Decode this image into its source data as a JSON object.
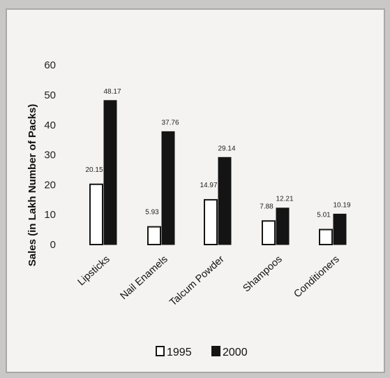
{
  "chart_data": {
    "type": "bar",
    "ylabel": "Sales (in Lakh Number of Packs)",
    "xlabel": "",
    "ylim": [
      0,
      60
    ],
    "yticks": [
      "0",
      "10",
      "20",
      "30",
      "40",
      "50",
      "60"
    ],
    "categories": [
      "Lipsticks",
      "Nail Enamels",
      "Talcum Powder",
      "Shampoos",
      "Conditioners"
    ],
    "series": [
      {
        "name": "1995",
        "values": [
          20.15,
          5.93,
          14.97,
          7.88,
          5.01
        ],
        "labels": [
          "20.15",
          "5.93",
          "14.97",
          "7.88",
          "5.01"
        ],
        "color": "#ffffff"
      },
      {
        "name": "2000",
        "values": [
          48.17,
          37.76,
          29.14,
          12.21,
          10.19
        ],
        "labels": [
          "48.17",
          "37.76",
          "29.14",
          "12.21",
          "10.19"
        ],
        "color": "#111111"
      }
    ],
    "grid": false,
    "legend_position": "bottom"
  }
}
